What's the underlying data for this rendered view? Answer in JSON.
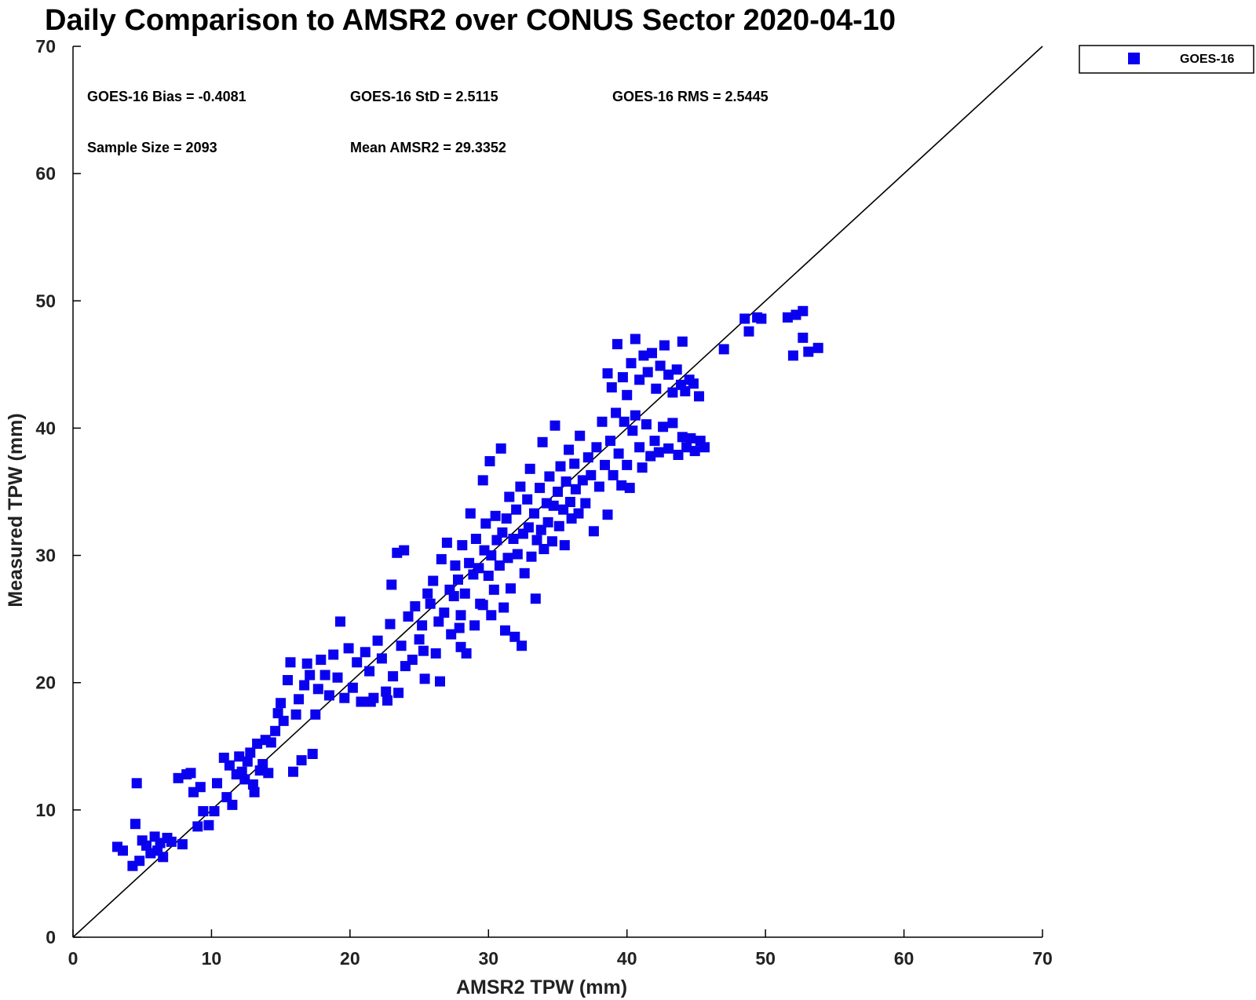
{
  "chart_data": {
    "type": "scatter",
    "title": "Daily Comparison to AMSR2 over CONUS Sector 2020-04-10",
    "xlabel": "AMSR2 TPW (mm)",
    "ylabel": "Measured TPW (mm)",
    "xlim": [
      0,
      70
    ],
    "ylim": [
      0,
      70
    ],
    "xticks": [
      0,
      10,
      20,
      30,
      40,
      50,
      60,
      70
    ],
    "yticks": [
      0,
      10,
      20,
      30,
      40,
      50,
      60,
      70
    ],
    "grid": false,
    "legend": {
      "position": "top-right",
      "entries": [
        "GOES-16"
      ]
    },
    "reference_line": {
      "type": "one-to-one",
      "from": [
        0,
        0
      ],
      "to": [
        70,
        70
      ]
    },
    "annotations": [
      "GOES-16 Bias = -0.4081",
      "GOES-16 StD = 2.5115",
      "GOES-16 RMS = 2.5445",
      "Sample Size = 2093",
      "Mean AMSR2 = 29.3352"
    ],
    "series": [
      {
        "name": "GOES-16",
        "color": "#0a00f0",
        "marker": "square",
        "sample_size": 2093,
        "points": [
          [
            3.2,
            7.1
          ],
          [
            3.6,
            6.8
          ],
          [
            4.5,
            8.9
          ],
          [
            4.6,
            12.1
          ],
          [
            4.3,
            5.6
          ],
          [
            4.8,
            6.0
          ],
          [
            5.0,
            7.6
          ],
          [
            5.3,
            7.2
          ],
          [
            5.6,
            6.6
          ],
          [
            5.9,
            7.9
          ],
          [
            6.1,
            6.8
          ],
          [
            6.3,
            7.4
          ],
          [
            6.5,
            6.3
          ],
          [
            6.8,
            7.8
          ],
          [
            7.1,
            7.5
          ],
          [
            7.6,
            12.5
          ],
          [
            7.9,
            7.3
          ],
          [
            8.2,
            12.8
          ],
          [
            8.5,
            12.9
          ],
          [
            8.7,
            11.4
          ],
          [
            9.0,
            8.7
          ],
          [
            9.2,
            11.8
          ],
          [
            9.4,
            9.9
          ],
          [
            9.8,
            8.8
          ],
          [
            10.2,
            9.9
          ],
          [
            10.4,
            12.1
          ],
          [
            10.9,
            14.1
          ],
          [
            11.1,
            11.0
          ],
          [
            11.3,
            13.5
          ],
          [
            11.5,
            10.4
          ],
          [
            11.8,
            12.8
          ],
          [
            12.0,
            14.2
          ],
          [
            12.2,
            13.0
          ],
          [
            12.4,
            12.4
          ],
          [
            12.6,
            13.8
          ],
          [
            12.8,
            14.5
          ],
          [
            13.0,
            12.0
          ],
          [
            13.1,
            11.4
          ],
          [
            13.3,
            15.2
          ],
          [
            13.5,
            13.1
          ],
          [
            13.7,
            13.6
          ],
          [
            13.9,
            15.5
          ],
          [
            14.1,
            12.9
          ],
          [
            14.3,
            15.3
          ],
          [
            14.6,
            16.2
          ],
          [
            14.8,
            17.6
          ],
          [
            15.0,
            18.4
          ],
          [
            15.2,
            17.0
          ],
          [
            15.5,
            20.2
          ],
          [
            15.7,
            21.6
          ],
          [
            15.9,
            13.0
          ],
          [
            16.1,
            17.5
          ],
          [
            16.3,
            18.7
          ],
          [
            16.5,
            13.9
          ],
          [
            16.7,
            19.8
          ],
          [
            16.9,
            21.5
          ],
          [
            17.1,
            20.6
          ],
          [
            17.3,
            14.4
          ],
          [
            17.5,
            17.5
          ],
          [
            17.7,
            19.5
          ],
          [
            17.9,
            21.8
          ],
          [
            18.2,
            20.6
          ],
          [
            18.5,
            19.0
          ],
          [
            18.8,
            22.2
          ],
          [
            19.1,
            20.4
          ],
          [
            19.3,
            24.8
          ],
          [
            19.6,
            18.8
          ],
          [
            19.9,
            22.7
          ],
          [
            20.2,
            19.6
          ],
          [
            20.5,
            21.6
          ],
          [
            20.8,
            18.5
          ],
          [
            21.1,
            22.4
          ],
          [
            21.4,
            20.9
          ],
          [
            21.7,
            18.8
          ],
          [
            22.0,
            23.3
          ],
          [
            22.3,
            21.9
          ],
          [
            22.6,
            19.3
          ],
          [
            22.9,
            24.6
          ],
          [
            23.1,
            20.5
          ],
          [
            23.0,
            27.7
          ],
          [
            23.4,
            30.2
          ],
          [
            23.7,
            22.9
          ],
          [
            23.9,
            30.4
          ],
          [
            24.2,
            25.2
          ],
          [
            24.5,
            21.8
          ],
          [
            24.7,
            26.0
          ],
          [
            25.0,
            23.4
          ],
          [
            25.2,
            24.5
          ],
          [
            25.4,
            20.3
          ],
          [
            25.6,
            27.0
          ],
          [
            25.8,
            26.2
          ],
          [
            26.0,
            28.0
          ],
          [
            26.2,
            22.3
          ],
          [
            26.4,
            24.8
          ],
          [
            26.6,
            29.7
          ],
          [
            26.8,
            25.5
          ],
          [
            27.0,
            31.0
          ],
          [
            27.2,
            27.3
          ],
          [
            27.3,
            23.8
          ],
          [
            27.5,
            26.8
          ],
          [
            27.6,
            29.2
          ],
          [
            27.8,
            28.1
          ],
          [
            28.0,
            25.3
          ],
          [
            28.1,
            30.8
          ],
          [
            28.3,
            27.0
          ],
          [
            28.4,
            22.3
          ],
          [
            28.6,
            29.4
          ],
          [
            28.7,
            33.3
          ],
          [
            28.9,
            28.5
          ],
          [
            29.0,
            24.5
          ],
          [
            29.1,
            31.3
          ],
          [
            29.3,
            29.0
          ],
          [
            29.4,
            26.2
          ],
          [
            29.6,
            35.9
          ],
          [
            29.7,
            30.4
          ],
          [
            29.8,
            32.5
          ],
          [
            30.0,
            28.4
          ],
          [
            30.1,
            37.4
          ],
          [
            30.2,
            30.0
          ],
          [
            30.4,
            27.3
          ],
          [
            30.5,
            33.1
          ],
          [
            30.6,
            31.2
          ],
          [
            30.8,
            29.2
          ],
          [
            30.9,
            38.4
          ],
          [
            31.0,
            31.8
          ],
          [
            31.1,
            25.9
          ],
          [
            31.3,
            32.9
          ],
          [
            31.4,
            29.8
          ],
          [
            31.5,
            34.6
          ],
          [
            31.6,
            27.4
          ],
          [
            31.8,
            31.3
          ],
          [
            31.9,
            23.6
          ],
          [
            32.0,
            33.6
          ],
          [
            32.1,
            30.1
          ],
          [
            32.3,
            35.4
          ],
          [
            32.4,
            22.9
          ],
          [
            32.5,
            31.7
          ],
          [
            32.6,
            28.6
          ],
          [
            32.8,
            34.4
          ],
          [
            32.9,
            32.2
          ],
          [
            33.0,
            36.8
          ],
          [
            33.1,
            29.9
          ],
          [
            33.3,
            33.3
          ],
          [
            33.4,
            26.6
          ],
          [
            33.5,
            31.2
          ],
          [
            33.7,
            35.3
          ],
          [
            33.8,
            32.0
          ],
          [
            33.9,
            38.9
          ],
          [
            34.0,
            30.5
          ],
          [
            34.2,
            34.1
          ],
          [
            34.3,
            32.6
          ],
          [
            34.4,
            36.2
          ],
          [
            34.6,
            31.1
          ],
          [
            34.7,
            33.9
          ],
          [
            34.8,
            40.2
          ],
          [
            35.0,
            35.0
          ],
          [
            35.1,
            32.3
          ],
          [
            35.2,
            37.0
          ],
          [
            35.4,
            33.6
          ],
          [
            35.5,
            30.8
          ],
          [
            35.6,
            35.8
          ],
          [
            35.8,
            38.3
          ],
          [
            35.9,
            34.2
          ],
          [
            36.0,
            32.9
          ],
          [
            36.2,
            37.2
          ],
          [
            36.3,
            35.2
          ],
          [
            36.5,
            33.3
          ],
          [
            36.6,
            39.4
          ],
          [
            36.8,
            35.9
          ],
          [
            37.0,
            34.1
          ],
          [
            37.2,
            37.7
          ],
          [
            37.4,
            36.3
          ],
          [
            37.6,
            31.9
          ],
          [
            37.8,
            38.5
          ],
          [
            38.0,
            35.4
          ],
          [
            38.2,
            40.5
          ],
          [
            38.4,
            37.1
          ],
          [
            38.6,
            33.2
          ],
          [
            38.8,
            39.0
          ],
          [
            39.0,
            36.3
          ],
          [
            39.2,
            41.2
          ],
          [
            39.4,
            38.0
          ],
          [
            39.6,
            35.5
          ],
          [
            39.8,
            40.5
          ],
          [
            40.0,
            37.1
          ],
          [
            40.2,
            35.3
          ],
          [
            40.4,
            39.8
          ],
          [
            40.6,
            41.0
          ],
          [
            40.9,
            38.5
          ],
          [
            41.1,
            36.9
          ],
          [
            41.4,
            40.3
          ],
          [
            41.7,
            37.8
          ],
          [
            42.0,
            39.0
          ],
          [
            42.3,
            38.1
          ],
          [
            42.6,
            40.1
          ],
          [
            43.0,
            38.4
          ],
          [
            43.3,
            40.4
          ],
          [
            43.7,
            37.9
          ],
          [
            44.0,
            39.3
          ],
          [
            44.3,
            38.5
          ],
          [
            44.6,
            39.2
          ],
          [
            44.9,
            38.2
          ],
          [
            45.3,
            39.0
          ],
          [
            45.6,
            38.5
          ],
          [
            38.6,
            44.3
          ],
          [
            38.9,
            43.2
          ],
          [
            39.3,
            46.6
          ],
          [
            39.7,
            44.0
          ],
          [
            40.0,
            42.6
          ],
          [
            40.3,
            45.1
          ],
          [
            40.6,
            47.0
          ],
          [
            40.9,
            43.8
          ],
          [
            41.2,
            45.7
          ],
          [
            41.5,
            44.4
          ],
          [
            41.8,
            45.9
          ],
          [
            42.1,
            43.1
          ],
          [
            42.4,
            44.9
          ],
          [
            42.7,
            46.5
          ],
          [
            43.0,
            44.2
          ],
          [
            43.3,
            42.8
          ],
          [
            43.6,
            44.6
          ],
          [
            43.9,
            43.4
          ],
          [
            44.2,
            42.9
          ],
          [
            44.5,
            43.8
          ],
          [
            44.8,
            43.5
          ],
          [
            45.2,
            42.5
          ],
          [
            44.0,
            46.8
          ],
          [
            47.0,
            46.2
          ],
          [
            48.5,
            48.6
          ],
          [
            48.8,
            47.6
          ],
          [
            49.4,
            48.7
          ],
          [
            49.7,
            48.6
          ],
          [
            51.6,
            48.7
          ],
          [
            52.2,
            48.9
          ],
          [
            52.7,
            49.2
          ],
          [
            52.0,
            45.7
          ],
          [
            52.7,
            47.1
          ],
          [
            53.1,
            46.0
          ],
          [
            53.8,
            46.3
          ],
          [
            23.5,
            19.2
          ],
          [
            21.5,
            18.5
          ],
          [
            22.7,
            18.6
          ],
          [
            24.0,
            21.3
          ],
          [
            26.5,
            20.1
          ],
          [
            28.0,
            22.8
          ],
          [
            30.2,
            25.3
          ],
          [
            31.2,
            24.1
          ],
          [
            29.6,
            26.1
          ],
          [
            27.9,
            24.3
          ],
          [
            25.3,
            22.5
          ]
        ]
      }
    ]
  },
  "legend": {
    "label": "GOES-16",
    "marker_color": "#0a00f0"
  },
  "colors": {
    "series": "#0a00f0",
    "axis": "#000000",
    "text": "#222222"
  }
}
